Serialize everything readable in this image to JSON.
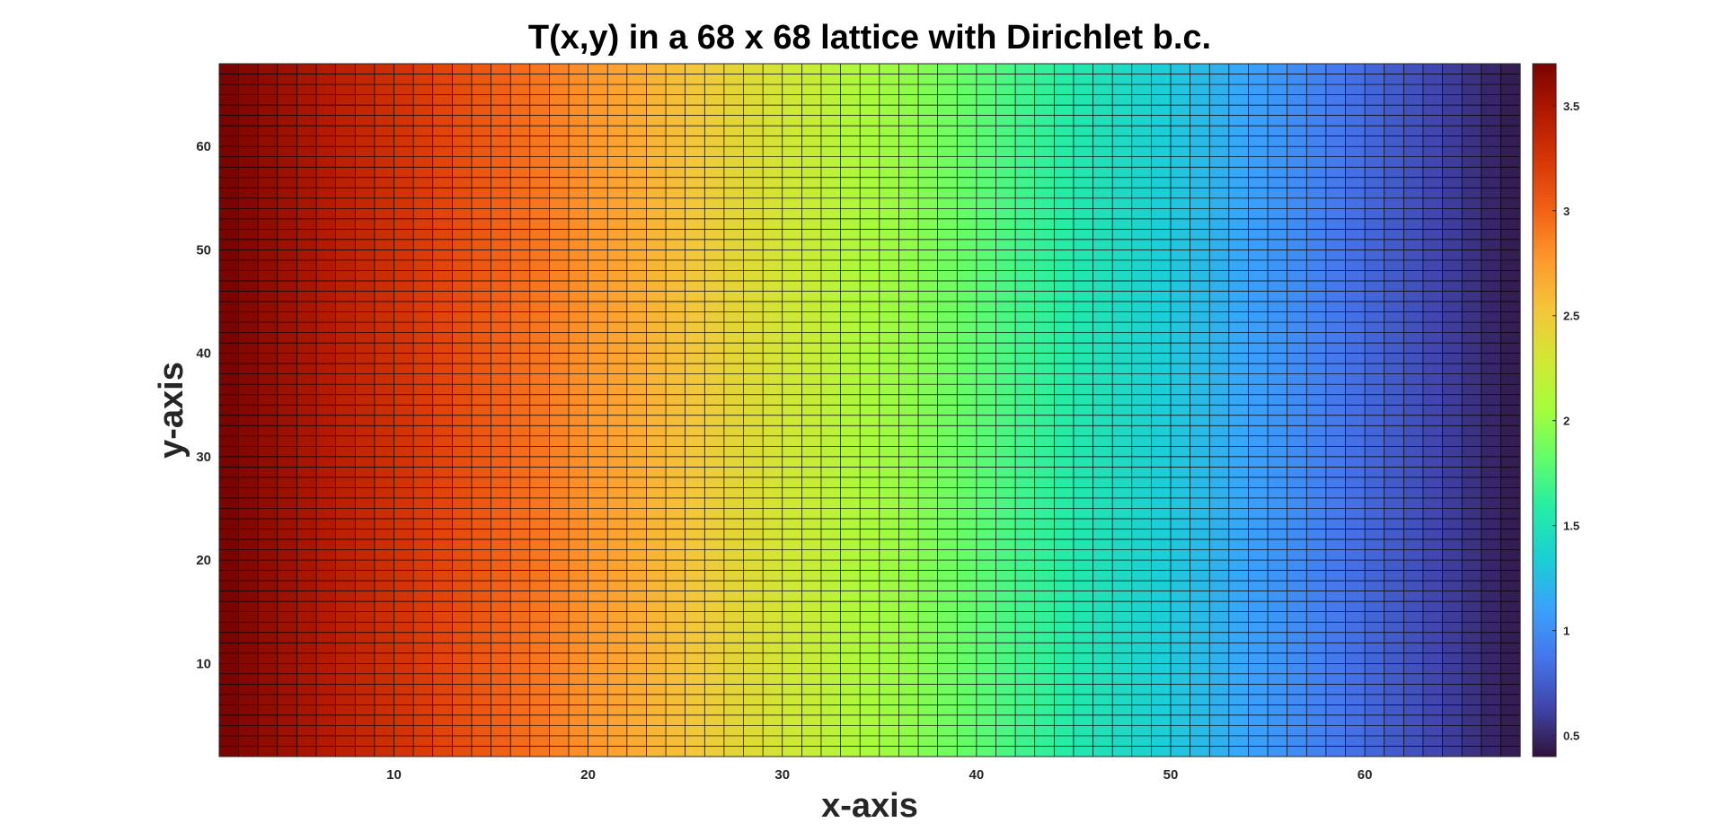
{
  "chart_data": {
    "type": "heatmap",
    "title": "T(x,y) in a 68 x 68 lattice with Dirichlet b.c.",
    "xlabel": "x-axis",
    "ylabel": "y-axis",
    "nx": 68,
    "ny": 68,
    "xlim": [
      1,
      68
    ],
    "ylim": [
      1,
      68
    ],
    "x_ticks": [
      10,
      20,
      30,
      40,
      50,
      60
    ],
    "y_ticks": [
      10,
      20,
      30,
      40,
      50,
      60
    ],
    "value_at_x1": 3.7,
    "value_at_x68": 0.4,
    "value_variation": "linear decrease along x, constant along y",
    "clim": [
      0.4,
      3.7
    ],
    "colorbar_ticks": [
      0.5,
      1,
      1.5,
      2,
      2.5,
      3,
      3.5
    ],
    "colormap": "turbo",
    "colormap_stops": [
      "#30123b",
      "#4145ab",
      "#4675ed",
      "#39a2fc",
      "#1bcfd4",
      "#24eca6",
      "#61fc6c",
      "#a4fc3b",
      "#d1e834",
      "#f3c63a",
      "#fe9b2d",
      "#f36315",
      "#d93806",
      "#b11901",
      "#7a0402"
    ],
    "grid_line_color": "#000000",
    "grid": true,
    "colorbar": "right"
  }
}
